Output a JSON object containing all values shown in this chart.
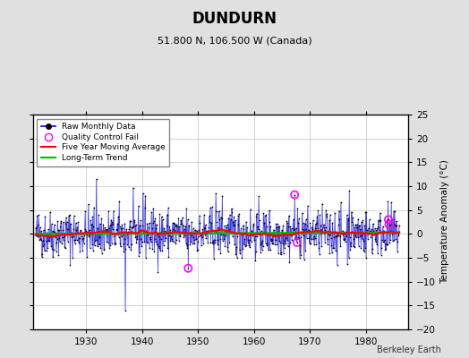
{
  "title": "DUNDURN",
  "subtitle": "51.800 N, 106.500 W (Canada)",
  "ylabel": "Temperature Anomaly (°C)",
  "watermark": "Berkeley Earth",
  "xlim": [
    1920.5,
    1987.5
  ],
  "ylim": [
    -20,
    25
  ],
  "yticks": [
    -20,
    -15,
    -10,
    -5,
    0,
    5,
    10,
    15,
    20,
    25
  ],
  "xticks": [
    1930,
    1940,
    1950,
    1960,
    1970,
    1980
  ],
  "start_year": 1921,
  "end_year": 1985,
  "raw_color": "#0000dd",
  "raw_fill_color": "#aaaaff",
  "ma_color": "#ff0000",
  "trend_color": "#00bb00",
  "qc_color": "#ff00ff",
  "bg_color": "#e0e0e0",
  "plot_bg": "#ffffff",
  "seed": 42,
  "noise_std": 2.5,
  "trend_slope": 0.004,
  "trend_intercept": 0.0
}
